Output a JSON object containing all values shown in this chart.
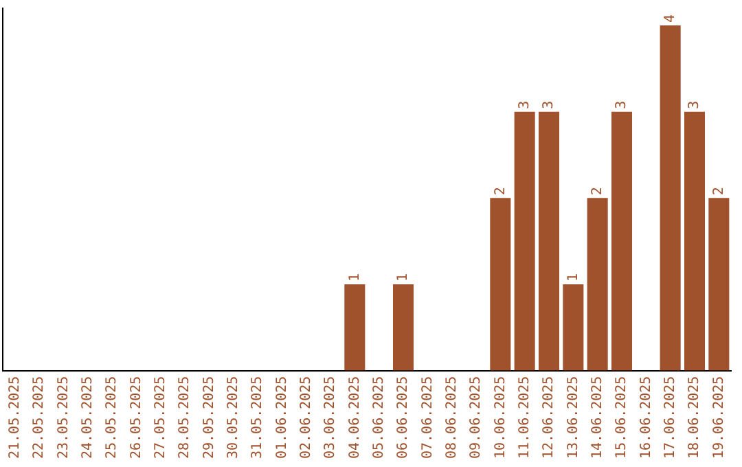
{
  "chart_data": {
    "type": "bar",
    "categories": [
      "21.05.2025",
      "22.05.2025",
      "23.05.2025",
      "24.05.2025",
      "25.05.2025",
      "26.05.2025",
      "27.05.2025",
      "28.05.2025",
      "29.05.2025",
      "30.05.2025",
      "31.05.2025",
      "01.06.2025",
      "02.06.2025",
      "03.06.2025",
      "04.06.2025",
      "05.06.2025",
      "06.06.2025",
      "07.06.2025",
      "08.06.2025",
      "09.06.2025",
      "10.06.2025",
      "11.06.2025",
      "12.06.2025",
      "13.06.2025",
      "14.06.2025",
      "15.06.2025",
      "16.06.2025",
      "17.06.2025",
      "18.06.2025",
      "19.06.2025"
    ],
    "values": [
      null,
      null,
      null,
      null,
      null,
      null,
      null,
      null,
      null,
      null,
      null,
      null,
      null,
      null,
      1,
      null,
      1,
      null,
      null,
      null,
      2,
      3,
      3,
      1,
      2,
      3,
      null,
      4,
      3,
      2
    ],
    "data_labels": true,
    "color": "#a0522d",
    "ylim": [
      0,
      4.2
    ],
    "tick_labels": "x",
    "grid": false,
    "legend": false
  }
}
